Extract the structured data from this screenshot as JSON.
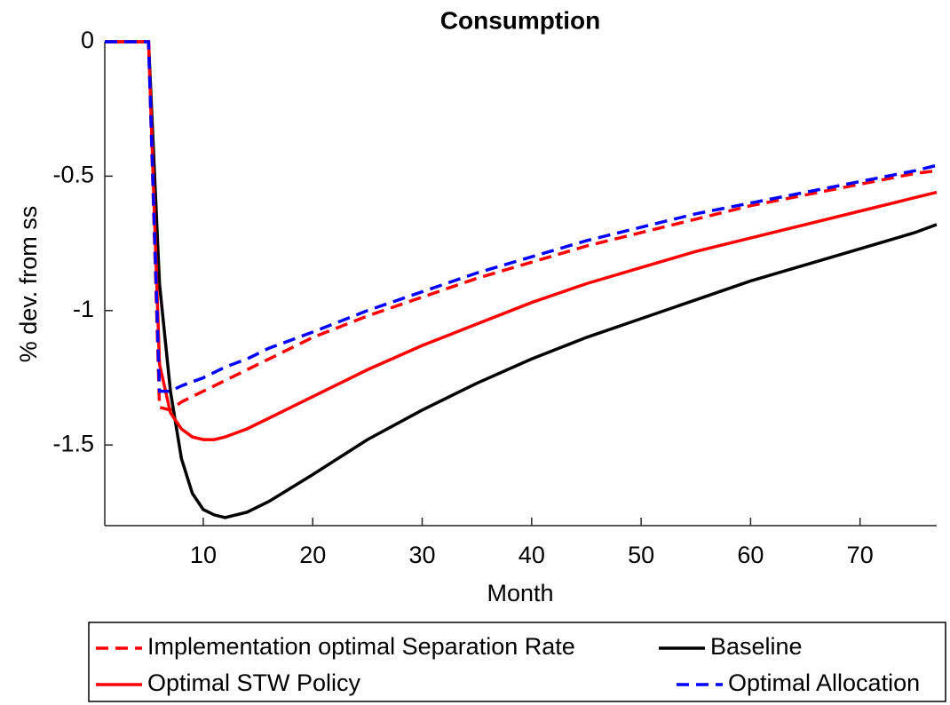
{
  "chart_data": {
    "type": "line",
    "title": "Consumption",
    "xlabel": "Month",
    "ylabel": "% dev. from ss",
    "x": [
      1,
      2,
      3,
      4,
      5,
      6,
      7,
      8,
      9,
      10,
      11,
      12,
      14,
      16,
      18,
      20,
      25,
      30,
      35,
      40,
      45,
      50,
      55,
      60,
      65,
      70,
      75,
      77
    ],
    "series": [
      {
        "name": "Implementation optimal Separation Rate",
        "color": "#ff0000",
        "dash": true,
        "values": [
          0,
          0,
          0,
          0,
          0,
          -1.36,
          -1.37,
          -1.34,
          -1.32,
          -1.3,
          -1.28,
          -1.26,
          -1.22,
          -1.18,
          -1.14,
          -1.1,
          -1.02,
          -0.95,
          -0.88,
          -0.82,
          -0.76,
          -0.71,
          -0.66,
          -0.61,
          -0.57,
          -0.53,
          -0.49,
          -0.48
        ]
      },
      {
        "name": "Baseline",
        "color": "#000000",
        "dash": false,
        "values": [
          0,
          0,
          0,
          0,
          0,
          -0.9,
          -1.3,
          -1.55,
          -1.68,
          -1.74,
          -1.76,
          -1.77,
          -1.75,
          -1.71,
          -1.66,
          -1.61,
          -1.48,
          -1.37,
          -1.27,
          -1.18,
          -1.1,
          -1.03,
          -0.96,
          -0.89,
          -0.83,
          -0.77,
          -0.71,
          -0.68
        ]
      },
      {
        "name": "Optimal STW Policy",
        "color": "#ff0000",
        "dash": false,
        "values": [
          0,
          0,
          0,
          0,
          0,
          -1.2,
          -1.38,
          -1.44,
          -1.47,
          -1.48,
          -1.48,
          -1.47,
          -1.44,
          -1.4,
          -1.36,
          -1.32,
          -1.22,
          -1.13,
          -1.05,
          -0.97,
          -0.9,
          -0.84,
          -0.78,
          -0.73,
          -0.68,
          -0.63,
          -0.58,
          -0.56
        ]
      },
      {
        "name": "Optimal Allocation",
        "color": "#0000ff",
        "dash": true,
        "values": [
          0,
          0,
          0,
          0,
          0,
          -1.3,
          -1.3,
          -1.28,
          -1.265,
          -1.25,
          -1.23,
          -1.21,
          -1.18,
          -1.14,
          -1.11,
          -1.08,
          -1.0,
          -0.93,
          -0.86,
          -0.8,
          -0.74,
          -0.69,
          -0.64,
          -0.6,
          -0.56,
          -0.52,
          -0.48,
          -0.46
        ]
      }
    ],
    "xlim": [
      1,
      77
    ],
    "xticks": [
      10,
      20,
      30,
      40,
      50,
      60,
      70
    ],
    "ylim": [
      -1.8,
      0
    ],
    "yticks": [
      0,
      -0.5,
      -1,
      -1.5
    ],
    "legend": "bottom"
  }
}
